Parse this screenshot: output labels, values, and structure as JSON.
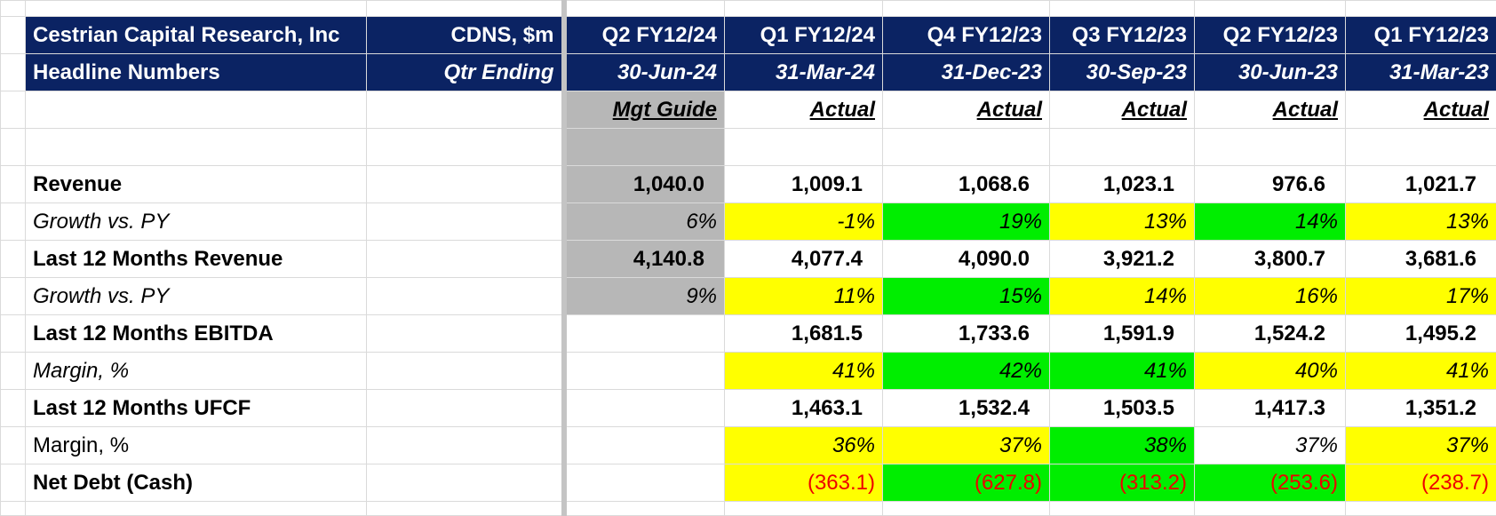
{
  "header": {
    "company": "Cestrian Capital Research, Inc",
    "subtitle": "Headline Numbers",
    "ticker": "CDNS, $m",
    "qtr_ending": "Qtr Ending"
  },
  "columns": [
    {
      "quarter": "Q2 FY12/24",
      "date": "30-Jun-24",
      "basis": "Mgt Guide"
    },
    {
      "quarter": "Q1 FY12/24",
      "date": "31-Mar-24",
      "basis": "Actual"
    },
    {
      "quarter": "Q4 FY12/23",
      "date": "31-Dec-23",
      "basis": "Actual"
    },
    {
      "quarter": "Q3 FY12/23",
      "date": "30-Sep-23",
      "basis": "Actual"
    },
    {
      "quarter": "Q2 FY12/23",
      "date": "30-Jun-23",
      "basis": "Actual"
    },
    {
      "quarter": "Q1 FY12/23",
      "date": "31-Mar-23",
      "basis": "Actual"
    }
  ],
  "rows": [
    {
      "label": "Revenue",
      "values": [
        "1,040.0",
        "1,009.1",
        "1,068.6",
        "1,023.1",
        "976.6",
        "1,021.7"
      ]
    },
    {
      "label": "Growth vs. PY",
      "values": [
        "6%",
        "-1%",
        "19%",
        "13%",
        "14%",
        "13%"
      ]
    },
    {
      "label": "Last 12 Months Revenue",
      "values": [
        "4,140.8",
        "4,077.4",
        "4,090.0",
        "3,921.2",
        "3,800.7",
        "3,681.6"
      ]
    },
    {
      "label": "Growth vs. PY",
      "values": [
        "9%",
        "11%",
        "15%",
        "14%",
        "16%",
        "17%"
      ]
    },
    {
      "label": "Last 12 Months EBITDA",
      "values": [
        "",
        "1,681.5",
        "1,733.6",
        "1,591.9",
        "1,524.2",
        "1,495.2"
      ]
    },
    {
      "label": "Margin, %",
      "values": [
        "",
        "41%",
        "42%",
        "41%",
        "40%",
        "41%"
      ]
    },
    {
      "label": "Last 12 Months UFCF",
      "values": [
        "",
        "1,463.1",
        "1,532.4",
        "1,503.5",
        "1,417.3",
        "1,351.2"
      ]
    },
    {
      "label": "Margin, %",
      "values": [
        "",
        "36%",
        "37%",
        "38%",
        "37%",
        "37%"
      ]
    },
    {
      "label": "Net Debt (Cash)",
      "values": [
        "",
        "(363.1)",
        "(627.8)",
        "(313.2)",
        "(253.6)",
        "(238.7)"
      ]
    }
  ],
  "colors": {
    "header_navy": "#0b2363",
    "guide_gray": "#b7b7b7",
    "yellow": "#ffff00",
    "green": "#00ee00",
    "negative_red": "#ee0000"
  }
}
